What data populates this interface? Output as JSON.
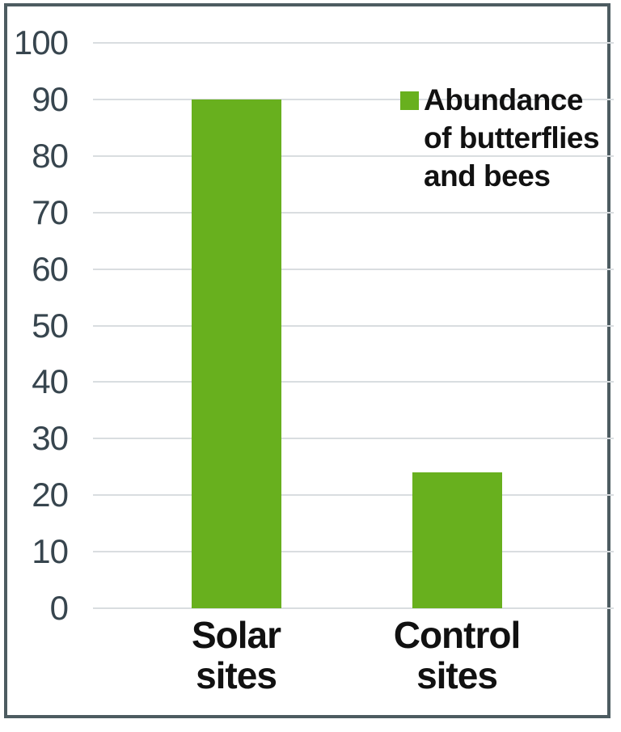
{
  "chart_data": {
    "type": "bar",
    "categories": [
      "Solar sites",
      "Control sites"
    ],
    "values": [
      90,
      24
    ],
    "series_name": "Abundance of butterflies and bees",
    "legend": {
      "label": "Abundance of butterflies and bees",
      "label_lines": [
        "Abundance",
        "of butterflies",
        "and bees"
      ],
      "position": "top-right"
    },
    "title": "",
    "xlabel": "",
    "ylabel": "",
    "ylim": [
      0,
      100
    ],
    "ytick_step": 10,
    "yticks": [
      0,
      10,
      20,
      30,
      40,
      50,
      60,
      70,
      80,
      90,
      100
    ],
    "grid": true
  },
  "colors": {
    "bar": "#68b01e",
    "frame": "#4d5c61",
    "gridline": "#d9dde0",
    "y_label": "#37454e",
    "text": "#111111",
    "background": "#ffffff"
  }
}
